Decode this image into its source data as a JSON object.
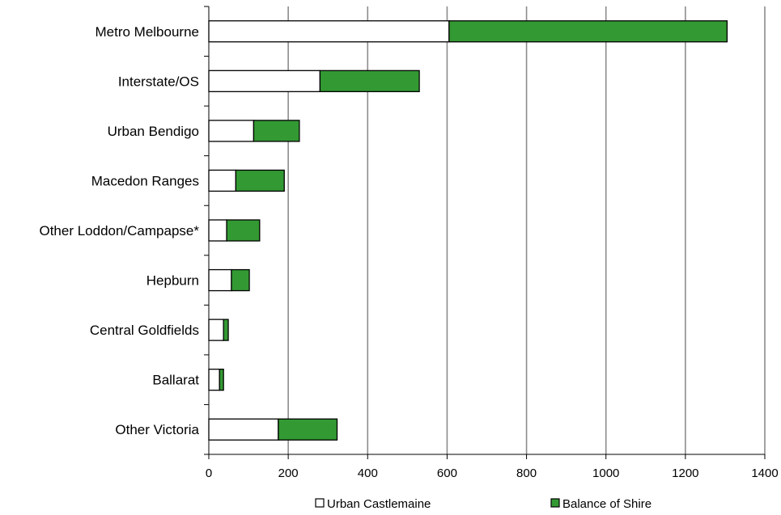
{
  "chart_data": {
    "type": "bar",
    "orientation": "horizontal",
    "stacked": true,
    "title": "",
    "xlabel": "",
    "ylabel": "",
    "categories": [
      "Metro Melbourne",
      "Interstate/OS",
      "Urban Bendigo",
      "Macedon Ranges",
      "Other Loddon/Campapse*",
      "Hepburn",
      "Central Goldfields",
      "Ballarat",
      "Other Victoria"
    ],
    "series": [
      {
        "name": "Urban Castlemaine",
        "color": "#ffffff",
        "values": [
          605,
          280,
          113,
          68,
          45,
          57,
          37,
          27,
          175
        ]
      },
      {
        "name": "Balance of Shire",
        "color": "#339933",
        "values": [
          700,
          250,
          115,
          122,
          83,
          45,
          12,
          10,
          148
        ]
      }
    ],
    "xlim": [
      0,
      1400
    ],
    "xticks": [
      "0",
      "200",
      "400",
      "600",
      "800",
      "1000",
      "1200",
      "1400"
    ],
    "grid": "vertical",
    "legend_position": "bottom"
  }
}
